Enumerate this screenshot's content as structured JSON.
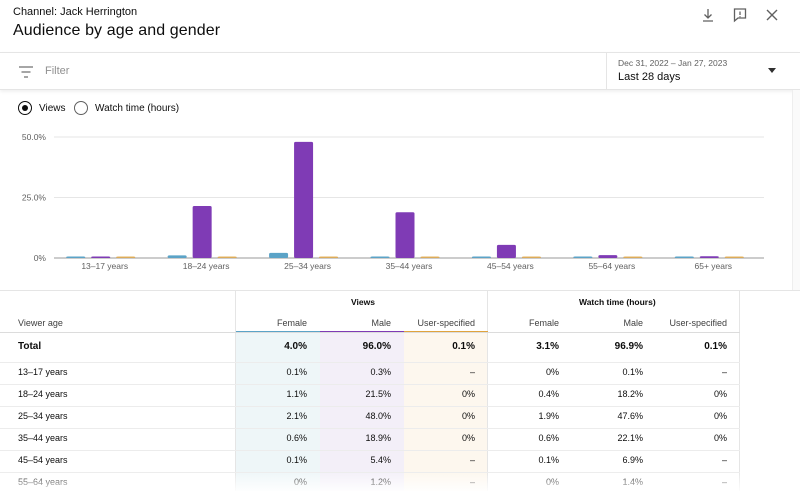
{
  "header": {
    "channel": "Channel: Jack Herrington",
    "title": "Audience by age and gender",
    "icons": [
      "download-icon",
      "feedback-icon",
      "close-icon"
    ]
  },
  "filter": {
    "placeholder": "Filter"
  },
  "date": {
    "range": "Dec 31, 2022 – Jan 27, 2023",
    "label": "Last 28 days"
  },
  "metric_toggle": {
    "options": [
      "Views",
      "Watch time (hours)"
    ],
    "selected": "Views"
  },
  "colors": {
    "female": "#5ba3c7",
    "male": "#7f3bb5",
    "user_specified": "#e0a33c",
    "shade_female": "#eef6f8",
    "shade_male": "#f3eff8",
    "shade_user": "#fdf7ee"
  },
  "chart_data": {
    "type": "bar",
    "categories": [
      "13–17 years",
      "18–24 years",
      "25–34 years",
      "35–44 years",
      "45–54 years",
      "55–64 years",
      "65+ years"
    ],
    "series": [
      {
        "name": "Female",
        "values": [
          0.1,
          1.1,
          2.1,
          0.6,
          0.1,
          0.0,
          0.0
        ]
      },
      {
        "name": "Male",
        "values": [
          0.3,
          21.5,
          48.0,
          18.9,
          5.4,
          1.2,
          0.7
        ]
      },
      {
        "name": "User-specified",
        "values": [
          0,
          0,
          0,
          0,
          0,
          0,
          0
        ]
      }
    ],
    "yticks": [
      "50.0%",
      "25.0%",
      "0%"
    ],
    "ylim": [
      0,
      50
    ],
    "grid": true
  },
  "table": {
    "group_views": "Views",
    "group_watch": "Watch time (hours)",
    "row_header": "Viewer age",
    "col_female": "Female",
    "col_male": "Male",
    "col_user": "User-specified",
    "rows": [
      {
        "label": "Total",
        "v_f": "4.0%",
        "v_m": "96.0%",
        "v_u": "0.1%",
        "w_f": "3.1%",
        "w_m": "96.9%",
        "w_u": "0.1%"
      },
      {
        "label": "13–17 years",
        "v_f": "0.1%",
        "v_m": "0.3%",
        "v_u": "–",
        "w_f": "0%",
        "w_m": "0.1%",
        "w_u": "–"
      },
      {
        "label": "18–24 years",
        "v_f": "1.1%",
        "v_m": "21.5%",
        "v_u": "0%",
        "w_f": "0.4%",
        "w_m": "18.2%",
        "w_u": "0%"
      },
      {
        "label": "25–34 years",
        "v_f": "2.1%",
        "v_m": "48.0%",
        "v_u": "0%",
        "w_f": "1.9%",
        "w_m": "47.6%",
        "w_u": "0%"
      },
      {
        "label": "35–44 years",
        "v_f": "0.6%",
        "v_m": "18.9%",
        "v_u": "0%",
        "w_f": "0.6%",
        "w_m": "22.1%",
        "w_u": "0%"
      },
      {
        "label": "45–54 years",
        "v_f": "0.1%",
        "v_m": "5.4%",
        "v_u": "–",
        "w_f": "0.1%",
        "w_m": "6.9%",
        "w_u": "–"
      },
      {
        "label": "55–64 years",
        "v_f": "0%",
        "v_m": "1.2%",
        "v_u": "–",
        "w_f": "0%",
        "w_m": "1.4%",
        "w_u": "–"
      }
    ]
  }
}
